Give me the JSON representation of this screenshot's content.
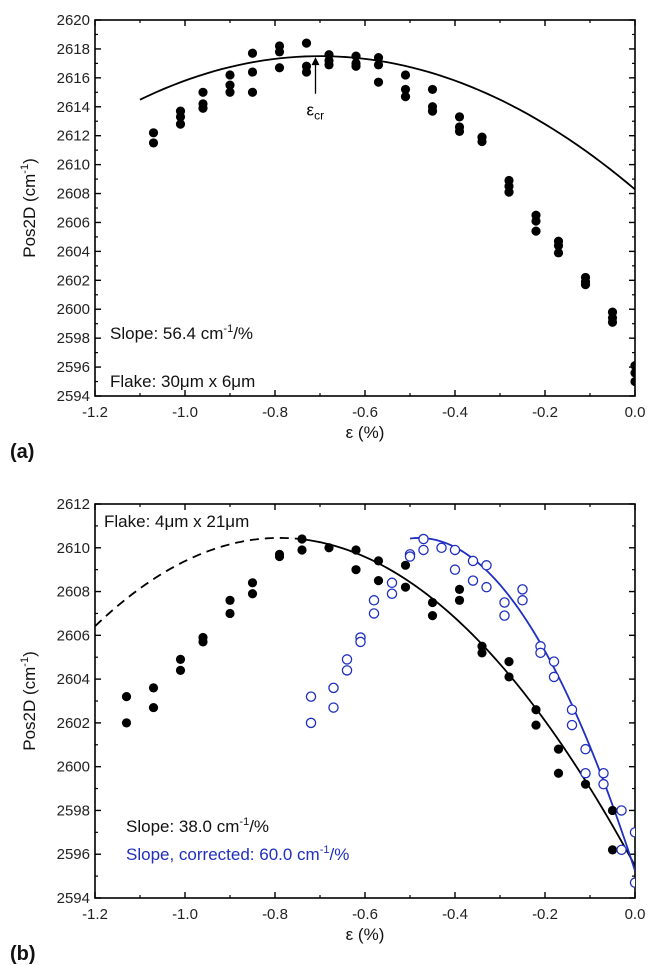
{
  "colors": {
    "black_series": "#000000",
    "blue_series": "#1f2fbf",
    "axis": "#000000"
  },
  "chart_data": [
    {
      "type": "scatter",
      "panel_label": "(a)",
      "xlabel": "ε (%)",
      "ylabel_main": "Pos2D (cm",
      "ylabel_sup": "-1",
      "ylabel_end": ")",
      "xlim": [
        -1.2,
        0.0
      ],
      "ylim": [
        2594,
        2620
      ],
      "xticks": [
        -1.2,
        -1.0,
        -0.8,
        -0.6,
        -0.4,
        -0.2,
        0.0
      ],
      "xtick_labels": [
        "-1.2",
        "-1.0",
        "-0.8",
        "-0.6",
        "-0.4",
        "-0.2",
        "0.0"
      ],
      "yticks": [
        2594,
        2596,
        2598,
        2600,
        2602,
        2604,
        2606,
        2608,
        2610,
        2612,
        2614,
        2616,
        2618,
        2620
      ],
      "ytick_labels": [
        "2594",
        "2596",
        "2598",
        "2600",
        "2602",
        "2604",
        "2606",
        "2608",
        "2610",
        "2612",
        "2614",
        "2616",
        "2618",
        "2620"
      ],
      "annotations": {
        "slope_text": "Slope: 56.4 cm",
        "slope_sup": "-1",
        "slope_end": "/%",
        "flake_text": "Flake: 30μm x 6μm",
        "ecr_main": "ε",
        "ecr_sub": "cr"
      },
      "arrow": {
        "x": -0.71,
        "y_from": 2614.9,
        "y_to": 2617.5
      },
      "series": [
        {
          "marker": "filled-circle",
          "color": "#000000",
          "points": [
            [
              -1.07,
              2612.2
            ],
            [
              -1.07,
              2611.5
            ],
            [
              -1.01,
              2613.7
            ],
            [
              -1.01,
              2613.3
            ],
            [
              -1.01,
              2612.8
            ],
            [
              -0.96,
              2615.0
            ],
            [
              -0.96,
              2614.2
            ],
            [
              -0.96,
              2613.9
            ],
            [
              -0.9,
              2616.2
            ],
            [
              -0.9,
              2615.5
            ],
            [
              -0.9,
              2615.0
            ],
            [
              -0.85,
              2617.7
            ],
            [
              -0.85,
              2616.4
            ],
            [
              -0.85,
              2615.0
            ],
            [
              -0.79,
              2618.2
            ],
            [
              -0.79,
              2617.8
            ],
            [
              -0.79,
              2616.7
            ],
            [
              -0.73,
              2618.4
            ],
            [
              -0.73,
              2616.8
            ],
            [
              -0.73,
              2616.4
            ],
            [
              -0.68,
              2617.6
            ],
            [
              -0.68,
              2617.2
            ],
            [
              -0.68,
              2616.9
            ],
            [
              -0.62,
              2617.5
            ],
            [
              -0.62,
              2617.0
            ],
            [
              -0.62,
              2616.8
            ],
            [
              -0.57,
              2617.4
            ],
            [
              -0.57,
              2616.9
            ],
            [
              -0.57,
              2615.7
            ],
            [
              -0.51,
              2616.2
            ],
            [
              -0.51,
              2615.2
            ],
            [
              -0.51,
              2614.7
            ],
            [
              -0.45,
              2615.2
            ],
            [
              -0.45,
              2614.0
            ],
            [
              -0.45,
              2613.7
            ],
            [
              -0.39,
              2613.3
            ],
            [
              -0.39,
              2612.6
            ],
            [
              -0.39,
              2612.3
            ],
            [
              -0.34,
              2611.9
            ],
            [
              -0.34,
              2611.6
            ],
            [
              -0.28,
              2608.9
            ],
            [
              -0.28,
              2608.5
            ],
            [
              -0.28,
              2608.1
            ],
            [
              -0.22,
              2606.5
            ],
            [
              -0.22,
              2606.1
            ],
            [
              -0.22,
              2605.4
            ],
            [
              -0.17,
              2604.7
            ],
            [
              -0.17,
              2604.4
            ],
            [
              -0.17,
              2603.9
            ],
            [
              -0.11,
              2602.2
            ],
            [
              -0.11,
              2601.9
            ],
            [
              -0.11,
              2601.7
            ],
            [
              -0.05,
              2599.8
            ],
            [
              -0.05,
              2599.4
            ],
            [
              -0.05,
              2599.1
            ],
            [
              0.0,
              2596.1
            ],
            [
              0.0,
              2595.6
            ],
            [
              0.0,
              2595.0
            ]
          ]
        }
      ],
      "fits": [
        {
          "color": "#000000",
          "style": "solid",
          "x_from": -1.1,
          "x_to": 0.0,
          "vertex_x": -0.7,
          "vertex_y": 2617.5,
          "curvature": -18.8
        }
      ]
    },
    {
      "type": "scatter",
      "panel_label": "(b)",
      "xlabel": "ε (%)",
      "ylabel_main": "Pos2D (cm",
      "ylabel_sup": "-1",
      "ylabel_end": ")",
      "xlim": [
        -1.2,
        0.0
      ],
      "ylim": [
        2594,
        2612
      ],
      "xticks": [
        -1.2,
        -1.0,
        -0.8,
        -0.6,
        -0.4,
        -0.2,
        0.0
      ],
      "xtick_labels": [
        "-1.2",
        "-1.0",
        "-0.8",
        "-0.6",
        "-0.4",
        "-0.2",
        "0.0"
      ],
      "yticks": [
        2594,
        2596,
        2598,
        2600,
        2602,
        2604,
        2606,
        2608,
        2610,
        2612
      ],
      "ytick_labels": [
        "2594",
        "2596",
        "2598",
        "2600",
        "2602",
        "2604",
        "2606",
        "2608",
        "2610",
        "2612"
      ],
      "annotations": {
        "flake_text": "Flake: 4μm x 21μm",
        "slope_black_text": "Slope: 38.0 cm",
        "slope_black_sup": "-1",
        "slope_black_end": "/%",
        "slope_blue_text": "Slope, corrected: 60.0 cm",
        "slope_blue_sup": "-1",
        "slope_blue_end": "/%"
      },
      "series": [
        {
          "marker": "filled-circle",
          "color": "#000000",
          "points": [
            [
              -1.13,
              2603.2
            ],
            [
              -1.13,
              2602.0
            ],
            [
              -1.07,
              2603.6
            ],
            [
              -1.07,
              2602.7
            ],
            [
              -1.01,
              2604.9
            ],
            [
              -1.01,
              2604.4
            ],
            [
              -0.96,
              2605.9
            ],
            [
              -0.96,
              2605.7
            ],
            [
              -0.9,
              2607.6
            ],
            [
              -0.9,
              2607.0
            ],
            [
              -0.85,
              2608.4
            ],
            [
              -0.85,
              2607.9
            ],
            [
              -0.79,
              2609.7
            ],
            [
              -0.79,
              2609.6
            ],
            [
              -0.74,
              2610.4
            ],
            [
              -0.74,
              2609.9
            ],
            [
              -0.68,
              2610.0
            ],
            [
              -0.62,
              2609.9
            ],
            [
              -0.62,
              2609.0
            ],
            [
              -0.57,
              2609.4
            ],
            [
              -0.57,
              2608.5
            ],
            [
              -0.51,
              2609.2
            ],
            [
              -0.51,
              2608.2
            ],
            [
              -0.45,
              2607.5
            ],
            [
              -0.45,
              2606.9
            ],
            [
              -0.39,
              2608.1
            ],
            [
              -0.39,
              2607.6
            ],
            [
              -0.34,
              2605.5
            ],
            [
              -0.34,
              2605.2
            ],
            [
              -0.28,
              2604.8
            ],
            [
              -0.28,
              2604.1
            ],
            [
              -0.22,
              2602.6
            ],
            [
              -0.22,
              2601.9
            ],
            [
              -0.17,
              2600.8
            ],
            [
              -0.17,
              2599.7
            ],
            [
              -0.11,
              2599.7
            ],
            [
              -0.11,
              2599.2
            ],
            [
              -0.05,
              2598.0
            ],
            [
              -0.05,
              2596.2
            ]
          ]
        },
        {
          "marker": "open-circle",
          "color": "#1f2fbf",
          "points": [
            [
              -0.72,
              2603.2
            ],
            [
              -0.72,
              2602.0
            ],
            [
              -0.67,
              2603.6
            ],
            [
              -0.67,
              2602.7
            ],
            [
              -0.64,
              2604.9
            ],
            [
              -0.64,
              2604.4
            ],
            [
              -0.61,
              2605.9
            ],
            [
              -0.61,
              2605.7
            ],
            [
              -0.58,
              2607.6
            ],
            [
              -0.58,
              2607.0
            ],
            [
              -0.54,
              2608.4
            ],
            [
              -0.54,
              2607.9
            ],
            [
              -0.5,
              2609.7
            ],
            [
              -0.5,
              2609.6
            ],
            [
              -0.47,
              2610.4
            ],
            [
              -0.47,
              2609.9
            ],
            [
              -0.43,
              2610.0
            ],
            [
              -0.4,
              2609.9
            ],
            [
              -0.4,
              2609.0
            ],
            [
              -0.36,
              2609.4
            ],
            [
              -0.36,
              2608.5
            ],
            [
              -0.33,
              2609.2
            ],
            [
              -0.33,
              2608.2
            ],
            [
              -0.29,
              2607.5
            ],
            [
              -0.29,
              2606.9
            ],
            [
              -0.25,
              2608.1
            ],
            [
              -0.25,
              2607.6
            ],
            [
              -0.21,
              2605.5
            ],
            [
              -0.21,
              2605.2
            ],
            [
              -0.18,
              2604.8
            ],
            [
              -0.18,
              2604.1
            ],
            [
              -0.14,
              2602.6
            ],
            [
              -0.14,
              2601.9
            ],
            [
              -0.11,
              2600.8
            ],
            [
              -0.11,
              2599.7
            ],
            [
              -0.07,
              2599.7
            ],
            [
              -0.07,
              2599.2
            ],
            [
              -0.03,
              2598.0
            ],
            [
              -0.03,
              2596.2
            ],
            [
              0.0,
              2597.0
            ],
            [
              0.0,
              2594.7
            ]
          ]
        }
      ],
      "fits": [
        {
          "color": "#000000",
          "style": "dashed",
          "x_from": -1.2,
          "x_to": -0.75,
          "vertex_x": -0.79,
          "vertex_y": 2610.45,
          "curvature": -24.0
        },
        {
          "color": "#000000",
          "style": "solid",
          "x_from": -0.75,
          "x_to": 0.0,
          "vertex_x": -0.79,
          "vertex_y": 2610.45,
          "curvature": -24.0
        },
        {
          "color": "#1f2fbf",
          "style": "solid",
          "x_from": -0.5,
          "x_to": 0.0,
          "vertex_x": -0.48,
          "vertex_y": 2610.45,
          "curvature": -66.0
        }
      ]
    }
  ]
}
